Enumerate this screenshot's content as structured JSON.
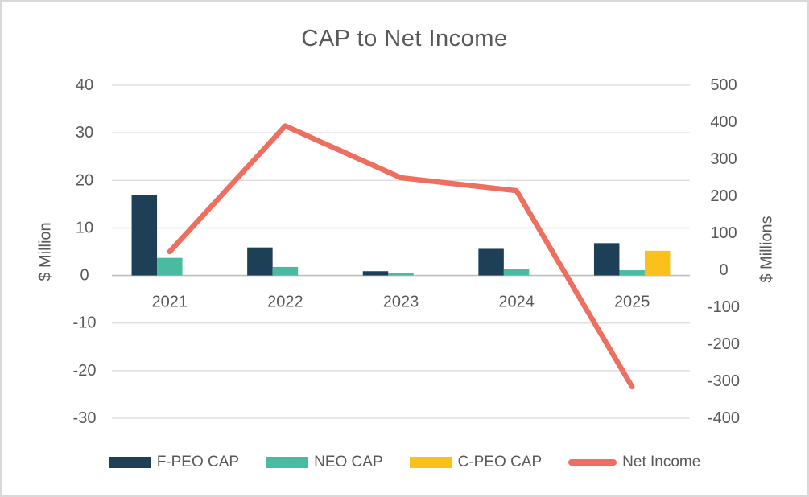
{
  "chart_data": {
    "type": "combo (clustered bar + line, dual axis)",
    "title": "CAP to Net Income",
    "categories": [
      "2021",
      "2022",
      "2023",
      "2024",
      "2025"
    ],
    "series": [
      {
        "name": "F-PEO CAP",
        "type": "bar",
        "axis": "left",
        "color": "#1d4057",
        "values": [
          17.0,
          5.9,
          0.9,
          5.6,
          6.8
        ]
      },
      {
        "name": "NEO CAP",
        "type": "bar",
        "axis": "left",
        "color": "#49bba1",
        "values": [
          3.7,
          1.8,
          0.6,
          1.4,
          1.1
        ]
      },
      {
        "name": "C-PEO CAP",
        "type": "bar",
        "axis": "left",
        "color": "#fac11d",
        "values": [
          0,
          0,
          0,
          0,
          5.2
        ]
      },
      {
        "name": "Net Income",
        "type": "line",
        "axis": "right",
        "color": "#ee6f5f",
        "values": [
          50,
          390,
          250,
          215,
          -315
        ]
      }
    ],
    "left_axis": {
      "label": "$ Million",
      "min": -30,
      "max": 40,
      "step": 10,
      "ticks": [
        40,
        30,
        20,
        10,
        0,
        -10,
        -20,
        -30
      ]
    },
    "right_axis": {
      "label": "$ Millions",
      "min": -400,
      "max": 500,
      "step": 100,
      "ticks": [
        500,
        400,
        300,
        200,
        100,
        0,
        -100,
        -200,
        -300,
        -400
      ]
    },
    "grid": true,
    "legend_position": "bottom",
    "text_color": "#595959",
    "gridline_color": "#d9d9d9",
    "zero_line_color": "#bfbfbf"
  }
}
